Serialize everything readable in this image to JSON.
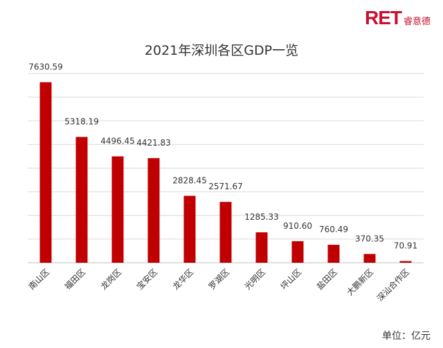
{
  "logo": {
    "mark": "RET",
    "sub": "睿意德"
  },
  "chart_data": {
    "type": "bar",
    "title": "2021年深圳各区GDP一览",
    "categories": [
      "南山区",
      "福田区",
      "龙岗区",
      "宝安区",
      "龙华区",
      "罗湖区",
      "光明区",
      "坪山区",
      "盐田区",
      "大鹏新区",
      "深汕合作区"
    ],
    "values": [
      7630.59,
      5318.19,
      4496.45,
      4421.83,
      2828.45,
      2571.67,
      1285.33,
      910.6,
      760.49,
      370.35,
      70.91
    ],
    "value_labels": [
      "7630.59",
      "5318.19",
      "4496.45",
      "4421.83",
      "2828.45",
      "2571.67",
      "1285.33",
      "910.60",
      "760.49",
      "370.35",
      "70.91"
    ],
    "ylim": [
      0,
      8000
    ],
    "grid": true,
    "bar_color": "#c00000",
    "unit_label": "单位：亿元"
  }
}
